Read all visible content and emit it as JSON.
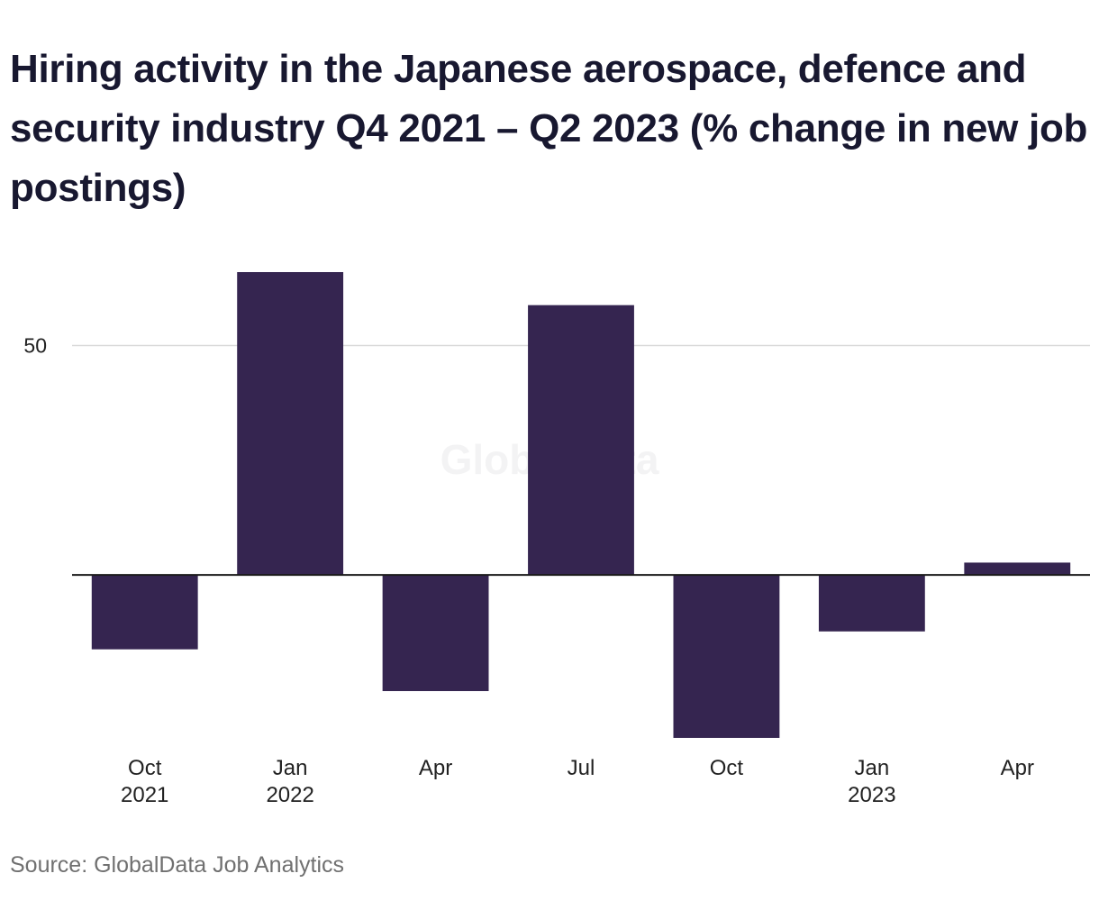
{
  "chart_data": {
    "type": "bar",
    "title": "Hiring activity in the Japanese aerospace, defence and security industry Q4 2021 – Q2 2023 (% change in new job postings)",
    "categories": [
      {
        "month": "Oct",
        "year": "2021"
      },
      {
        "month": "Jan",
        "year": "2022"
      },
      {
        "month": "Apr",
        "year": ""
      },
      {
        "month": "Jul",
        "year": ""
      },
      {
        "month": "Oct",
        "year": ""
      },
      {
        "month": "Jan",
        "year": "2023"
      },
      {
        "month": "Apr",
        "year": ""
      }
    ],
    "values": [
      -16.2,
      66.0,
      -25.3,
      58.8,
      -35.5,
      -12.3,
      2.7
    ],
    "ylim": [
      -35.5,
      66.0
    ],
    "yticks": [
      50
    ],
    "ytick_labels": [
      "50"
    ],
    "grid": true,
    "bar_color": "#352550",
    "watermark": "GlobalData",
    "xlabel": "",
    "ylabel": ""
  },
  "source": "Source: GlobalData Job Analytics"
}
